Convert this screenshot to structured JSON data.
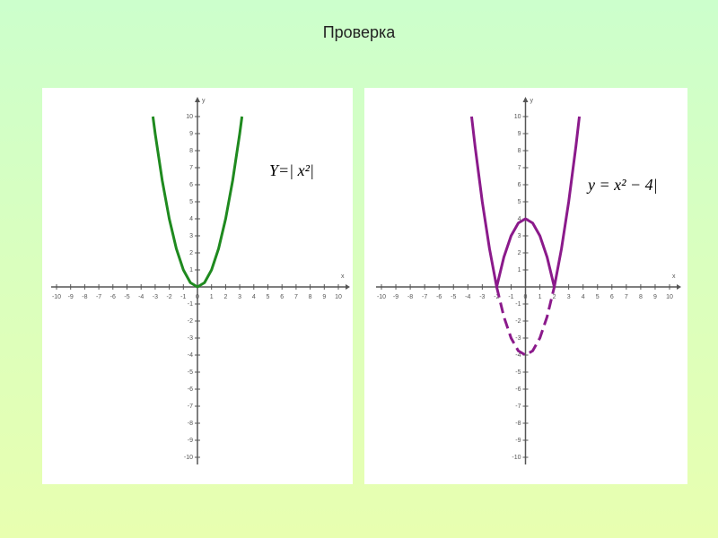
{
  "title": "Проверка",
  "chart_data": [
    {
      "type": "line",
      "xlabel": "x",
      "ylabel": "y",
      "annotation": "Y=| x²|",
      "xlim": [
        -10,
        10
      ],
      "ylim": [
        -10,
        10
      ],
      "xticks": [
        -10,
        -9,
        -8,
        -7,
        -6,
        -5,
        -4,
        -3,
        -2,
        -1,
        0,
        1,
        2,
        3,
        4,
        5,
        6,
        7,
        8,
        9,
        10
      ],
      "yticks": [
        -10,
        -9,
        -8,
        -7,
        -6,
        -5,
        -4,
        -3,
        -2,
        -1,
        1,
        2,
        3,
        4,
        5,
        6,
        7,
        8,
        9,
        10
      ],
      "x": [
        -3.16,
        -3,
        -2.5,
        -2,
        -1.5,
        -1,
        -0.5,
        0,
        0.5,
        1,
        1.5,
        2,
        2.5,
        3,
        3.16
      ],
      "series": [
        {
          "color": "#1f8a1f",
          "dashed": false,
          "values": [
            10,
            9,
            6.25,
            4,
            2.25,
            1,
            0.25,
            0,
            0.25,
            1,
            2.25,
            4,
            6.25,
            9,
            10
          ]
        }
      ]
    },
    {
      "type": "line",
      "xlabel": "x",
      "ylabel": "y",
      "annotation": "y = x² − 4|",
      "xlim": [
        -10,
        10
      ],
      "ylim": [
        -10,
        10
      ],
      "xticks": [
        -10,
        -9,
        -8,
        -7,
        -6,
        -5,
        -4,
        -3,
        -2,
        -1,
        0,
        1,
        2,
        3,
        4,
        5,
        6,
        7,
        8,
        9,
        10
      ],
      "yticks": [
        -10,
        -9,
        -8,
        -7,
        -6,
        -5,
        -4,
        -3,
        -2,
        -1,
        1,
        2,
        3,
        4,
        5,
        6,
        7,
        8,
        9,
        10
      ],
      "x": [
        -3.74,
        -3.5,
        -3,
        -2.5,
        -2,
        -1.5,
        -1,
        -0.5,
        0,
        0.5,
        1,
        1.5,
        2,
        2.5,
        3,
        3.5,
        3.74
      ],
      "series": [
        {
          "color": "#8b1a8b",
          "dashed": false,
          "values": [
            10,
            8.25,
            5,
            2.25,
            0,
            1.75,
            3,
            3.75,
            4,
            3.75,
            3,
            1.75,
            0,
            2.25,
            5,
            8.25,
            10
          ]
        },
        {
          "color": "#8b1a8b",
          "dashed": true,
          "values": [
            null,
            null,
            null,
            null,
            0,
            -1.75,
            -3,
            -3.75,
            -4,
            -3.75,
            -3,
            -1.75,
            0,
            null,
            null,
            null,
            null
          ]
        }
      ]
    }
  ]
}
